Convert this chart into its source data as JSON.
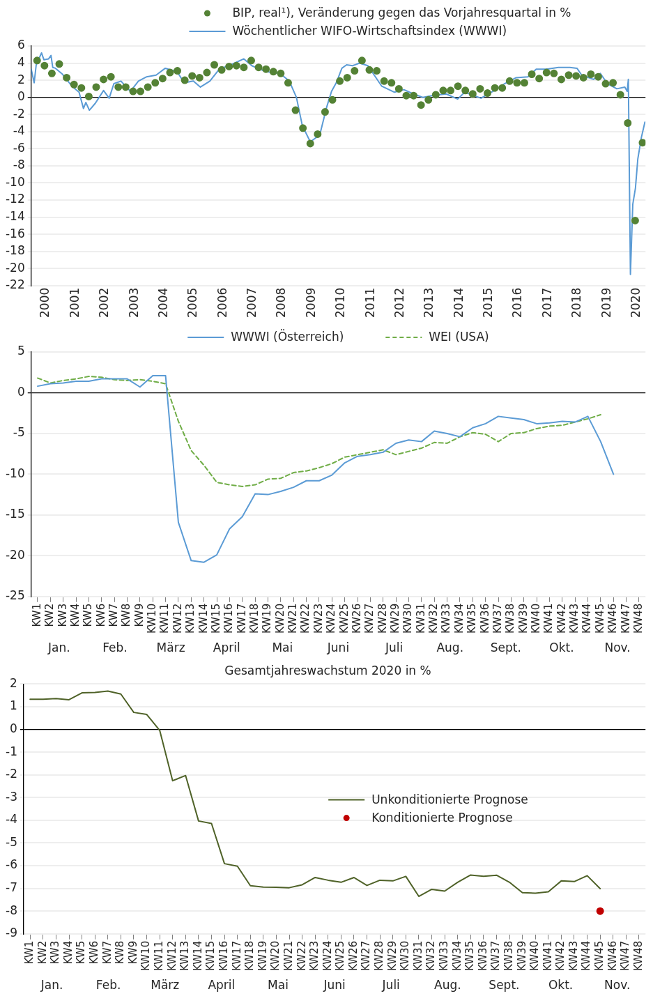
{
  "chart_data": [
    {
      "type": "line",
      "xlim": [
        2000,
        2020.8
      ],
      "xticks": [
        {
          "value": 2000.5,
          "label": "2000"
        },
        {
          "value": 2001.5,
          "label": "2001"
        },
        {
          "value": 2002.5,
          "label": "2002"
        },
        {
          "value": 2003.5,
          "label": "2003"
        },
        {
          "value": 2004.5,
          "label": "2004"
        },
        {
          "value": 2005.5,
          "label": "2005"
        },
        {
          "value": 2006.5,
          "label": "2006"
        },
        {
          "value": 2007.5,
          "label": "2007"
        },
        {
          "value": 2008.5,
          "label": "2008"
        },
        {
          "value": 2009.5,
          "label": "2009"
        },
        {
          "value": 2010.5,
          "label": "2010"
        },
        {
          "value": 2011.5,
          "label": "2011"
        },
        {
          "value": 2012.5,
          "label": "2012"
        },
        {
          "value": 2013.5,
          "label": "2013"
        },
        {
          "value": 2014.5,
          "label": "2014"
        },
        {
          "value": 2015.5,
          "label": "2015"
        },
        {
          "value": 2016.5,
          "label": "2016"
        },
        {
          "value": 2017.5,
          "label": "2017"
        },
        {
          "value": 2018.5,
          "label": "2018"
        },
        {
          "value": 2019.5,
          "label": "2019"
        },
        {
          "value": 2020.5,
          "label": "2020"
        }
      ],
      "ylim": [
        -22,
        6
      ],
      "yticks": [
        -22,
        -20,
        -18,
        -16,
        -14,
        -12,
        -10,
        -8,
        -6,
        -4,
        -2,
        0,
        2,
        4,
        6
      ],
      "grid": "y",
      "legend": "top",
      "series": [
        {
          "name": "BIP, real¹), Veränderung gegen das Vorjahresquartal in %",
          "type": "scatter",
          "marker": "circle",
          "color": "#548235",
          "x": [
            2000.2,
            2000.45,
            2000.7,
            2000.95,
            2001.2,
            2001.45,
            2001.7,
            2001.95,
            2002.2,
            2002.45,
            2002.7,
            2002.95,
            2003.2,
            2003.45,
            2003.7,
            2003.95,
            2004.2,
            2004.45,
            2004.7,
            2004.95,
            2005.2,
            2005.45,
            2005.7,
            2005.95,
            2006.2,
            2006.45,
            2006.7,
            2006.95,
            2007.2,
            2007.45,
            2007.7,
            2007.95,
            2008.2,
            2008.45,
            2008.7,
            2008.95,
            2009.2,
            2009.45,
            2009.7,
            2009.95,
            2010.2,
            2010.45,
            2010.7,
            2010.95,
            2011.2,
            2011.45,
            2011.7,
            2011.95,
            2012.2,
            2012.45,
            2012.7,
            2012.95,
            2013.2,
            2013.45,
            2013.7,
            2013.95,
            2014.2,
            2014.45,
            2014.7,
            2014.95,
            2015.2,
            2015.45,
            2015.7,
            2015.95,
            2016.2,
            2016.45,
            2016.7,
            2016.95,
            2017.2,
            2017.45,
            2017.7,
            2017.95,
            2018.2,
            2018.45,
            2018.7,
            2018.95,
            2019.2,
            2019.45,
            2019.7,
            2019.95,
            2020.2,
            2020.45,
            2020.7
          ],
          "values": [
            4.3,
            3.7,
            2.8,
            3.9,
            2.3,
            1.5,
            1.1,
            0.1,
            1.2,
            2.1,
            2.4,
            1.2,
            1.2,
            0.7,
            0.7,
            1.2,
            1.7,
            2.2,
            2.9,
            3.1,
            2.0,
            2.5,
            2.3,
            2.9,
            3.8,
            3.2,
            3.6,
            3.7,
            3.5,
            4.3,
            3.5,
            3.3,
            3.0,
            2.8,
            1.7,
            -1.5,
            -3.6,
            -5.4,
            -4.3,
            -1.7,
            -0.3,
            1.9,
            2.3,
            3.1,
            4.3,
            3.2,
            3.1,
            1.9,
            1.7,
            1.0,
            0.2,
            0.2,
            -0.9,
            -0.3,
            0.3,
            0.8,
            0.8,
            1.3,
            0.8,
            0.4,
            1.0,
            0.5,
            1.1,
            1.1,
            1.9,
            1.7,
            1.7,
            2.7,
            2.2,
            2.9,
            2.8,
            2.1,
            2.6,
            2.5,
            2.3,
            2.7,
            2.4,
            1.6,
            1.7,
            0.3,
            -3.0,
            -14.4,
            -5.3
          ]
        },
        {
          "name": "Wöchentlicher WIFO-Wirtschaftsindex (WWWI)",
          "marker": "none",
          "color": "#5b9bd5",
          "x": [
            2000.0,
            2000.1,
            2000.17,
            2000.35,
            2000.43,
            2000.59,
            2000.67,
            2000.73,
            2000.82,
            2001.06,
            2001.38,
            2001.62,
            2001.77,
            2001.85,
            2001.97,
            2002.17,
            2002.45,
            2002.64,
            2002.8,
            2003.04,
            2003.36,
            2003.63,
            2003.91,
            2004.23,
            2004.54,
            2004.94,
            2005.18,
            2005.49,
            2005.73,
            2006.05,
            2006.37,
            2006.76,
            2007.2,
            2007.47,
            2007.95,
            2008.42,
            2008.74,
            2008.98,
            2009.18,
            2009.45,
            2009.77,
            2010.0,
            2010.17,
            2010.33,
            2010.52,
            2010.68,
            2010.88,
            2011.12,
            2011.4,
            2011.87,
            2012.3,
            2012.62,
            2012.94,
            2013.26,
            2013.57,
            2014.05,
            2014.44,
            2014.68,
            2015.23,
            2015.63,
            2016.03,
            2016.42,
            2016.82,
            2017.1,
            2017.45,
            2017.85,
            2018.24,
            2018.48,
            2018.64,
            2019.04,
            2019.27,
            2019.51,
            2019.83,
            2020.1,
            2020.18,
            2020.22,
            2020.29,
            2020.37,
            2020.46,
            2020.54,
            2020.66,
            2020.78
          ],
          "values": [
            3.3,
            1.7,
            3.8,
            5.2,
            4.4,
            4.5,
            4.9,
            3.5,
            3.4,
            2.7,
            1.3,
            0.6,
            -1.3,
            -0.6,
            -1.5,
            -0.7,
            0.8,
            -0.1,
            1.6,
            1.9,
            0.7,
            1.9,
            2.4,
            2.6,
            3.4,
            3.0,
            1.7,
            1.9,
            1.2,
            1.9,
            3.3,
            3.8,
            4.5,
            3.7,
            3.0,
            2.8,
            1.9,
            0,
            -3.3,
            -5.2,
            -4.4,
            -1.2,
            0.7,
            1.7,
            3.4,
            3.8,
            3.7,
            4.0,
            3.7,
            1.3,
            0.6,
            0.9,
            0.4,
            0,
            0.2,
            0.4,
            -0.2,
            0.6,
            -0.1,
            0.7,
            1.6,
            2.3,
            2.4,
            3.3,
            3.3,
            3.5,
            3.5,
            3.4,
            2.6,
            2.1,
            2.8,
            1.6,
            1.0,
            1.2,
            0.7,
            2.1,
            -20.7,
            -12.5,
            -10.6,
            -7.2,
            -4.7,
            -2.9
          ]
        }
      ]
    },
    {
      "type": "line",
      "categories": [
        "KW1",
        "KW2",
        "KW3",
        "KW4",
        "KW5",
        "KW6",
        "KW7",
        "KW8",
        "KW9",
        "KW10",
        "KW11",
        "KW12",
        "KW13",
        "KW14",
        "KW15",
        "KW16",
        "KW17",
        "KW18",
        "KW19",
        "KW20",
        "KW21",
        "KW22",
        "KW23",
        "KW24",
        "KW25",
        "KW26",
        "KW27",
        "KW28",
        "KW29",
        "KW30",
        "KW31",
        "KW32",
        "KW33",
        "KW34",
        "KW35",
        "KW36",
        "KW37",
        "KW38",
        "KW39",
        "KW40",
        "KW41",
        "KW42",
        "KW43",
        "KW44",
        "KW45",
        "KW46",
        "KW47",
        "KW48"
      ],
      "ylim": [
        -25,
        5
      ],
      "yticks": [
        -25,
        -20,
        -15,
        -10,
        -5,
        0,
        5
      ],
      "grid": "y",
      "legend": "top",
      "annotations": [
        "Jan.",
        "Feb.",
        "März",
        "April",
        "Mai",
        "Juni",
        "Juli",
        "Aug.",
        "Sept.",
        "Okt.",
        "Nov."
      ],
      "series": [
        {
          "name": "WWWI (Österreich)",
          "color": "#5b9bd5",
          "line_style": "solid",
          "values": [
            0.8,
            1.1,
            1.2,
            1.4,
            1.4,
            1.7,
            1.7,
            1.7,
            0.7,
            2.1,
            2.1,
            -15.9,
            -20.6,
            -20.8,
            -19.9,
            -16.7,
            -15.2,
            -12.4,
            -12.5,
            -12.1,
            -11.6,
            -10.8,
            -10.8,
            -10.1,
            -8.6,
            -7.8,
            -7.6,
            -7.3,
            -6.2,
            -5.8,
            -6.0,
            -4.7,
            -5.0,
            -5.4,
            -4.3,
            -3.8,
            -2.9,
            -3.1,
            -3.3,
            -3.8,
            -3.7,
            -3.5,
            -3.6,
            -2.9,
            -6.0,
            -10.0,
            null,
            null
          ]
        },
        {
          "name": "WEI (USA)",
          "color": "#70ad47",
          "line_style": "dashed",
          "values": [
            1.8,
            1.2,
            1.5,
            1.7,
            2.0,
            1.9,
            1.6,
            1.5,
            1.6,
            1.4,
            1.1,
            -3.5,
            -7.1,
            -8.9,
            -11.0,
            -11.3,
            -11.5,
            -11.3,
            -10.6,
            -10.5,
            -9.8,
            -9.6,
            -9.2,
            -8.7,
            -7.9,
            -7.6,
            -7.3,
            -7.0,
            -7.6,
            -7.2,
            -6.8,
            -6.1,
            -6.2,
            -5.4,
            -4.9,
            -5.1,
            -6.0,
            -5.0,
            -4.9,
            -4.4,
            -4.1,
            -4.0,
            -3.6,
            -3.2,
            -2.7,
            null,
            null,
            null
          ]
        }
      ]
    },
    {
      "type": "line",
      "title": "Gesamtjahreswachstum 2020 in %",
      "categories": [
        "KW1",
        "KW2",
        "KW3",
        "KW4",
        "KW5",
        "KW6",
        "KW7",
        "KW8",
        "KW9",
        "KW10",
        "KW11",
        "KW12",
        "KW13",
        "KW14",
        "KW15",
        "KW16",
        "KW17",
        "KW18",
        "KW19",
        "KW20",
        "KW21",
        "KW22",
        "KW23",
        "KW24",
        "KW25",
        "KW26",
        "KW27",
        "KW28",
        "KW29",
        "KW30",
        "KW31",
        "KW32",
        "KW33",
        "KW34",
        "KW35",
        "KW36",
        "KW37",
        "KW38",
        "KW39",
        "KW40",
        "KW41",
        "KW42",
        "KW43",
        "KW44",
        "KW45",
        "KW46",
        "KW47",
        "KW48"
      ],
      "ylim": [
        -9,
        2
      ],
      "yticks": [
        -9,
        -8,
        -7,
        -6,
        -5,
        -4,
        -3,
        -2,
        -1,
        0,
        1,
        2
      ],
      "grid": "y",
      "legend": "center right",
      "annotations": [
        "Jan.",
        "Feb.",
        "März",
        "April",
        "Mai",
        "Juni",
        "Juli",
        "Aug.",
        "Sept.",
        "Okt.",
        "Nov."
      ],
      "series": [
        {
          "name": "Unkonditionierte Prognose",
          "marker": "none",
          "color": "#4f6228",
          "values": [
            1.33,
            1.33,
            1.36,
            1.31,
            1.61,
            1.63,
            1.69,
            1.56,
            0.75,
            0.66,
            -0.04,
            -2.26,
            -2.03,
            -4.03,
            -4.14,
            -5.91,
            -6.02,
            -6.88,
            -6.94,
            -6.95,
            -6.97,
            -6.84,
            -6.52,
            -6.64,
            -6.73,
            -6.52,
            -6.87,
            -6.64,
            -6.67,
            -6.47,
            -7.35,
            -7.04,
            -7.12,
            -6.73,
            -6.41,
            -6.47,
            -6.42,
            -6.73,
            -7.19,
            -7.21,
            -7.15,
            -6.67,
            -6.7,
            -6.44,
            -7.01,
            null,
            null,
            null
          ]
        },
        {
          "name": "Konditionierte Prognose",
          "type": "scatter",
          "marker": "circle",
          "color": "#c00000",
          "values": [
            null,
            null,
            null,
            null,
            null,
            null,
            null,
            null,
            null,
            null,
            null,
            null,
            null,
            null,
            null,
            null,
            null,
            null,
            null,
            null,
            null,
            null,
            null,
            null,
            null,
            null,
            null,
            null,
            null,
            null,
            null,
            null,
            null,
            null,
            null,
            null,
            null,
            null,
            null,
            null,
            null,
            null,
            null,
            null,
            -8,
            null,
            null,
            null
          ]
        }
      ]
    }
  ]
}
